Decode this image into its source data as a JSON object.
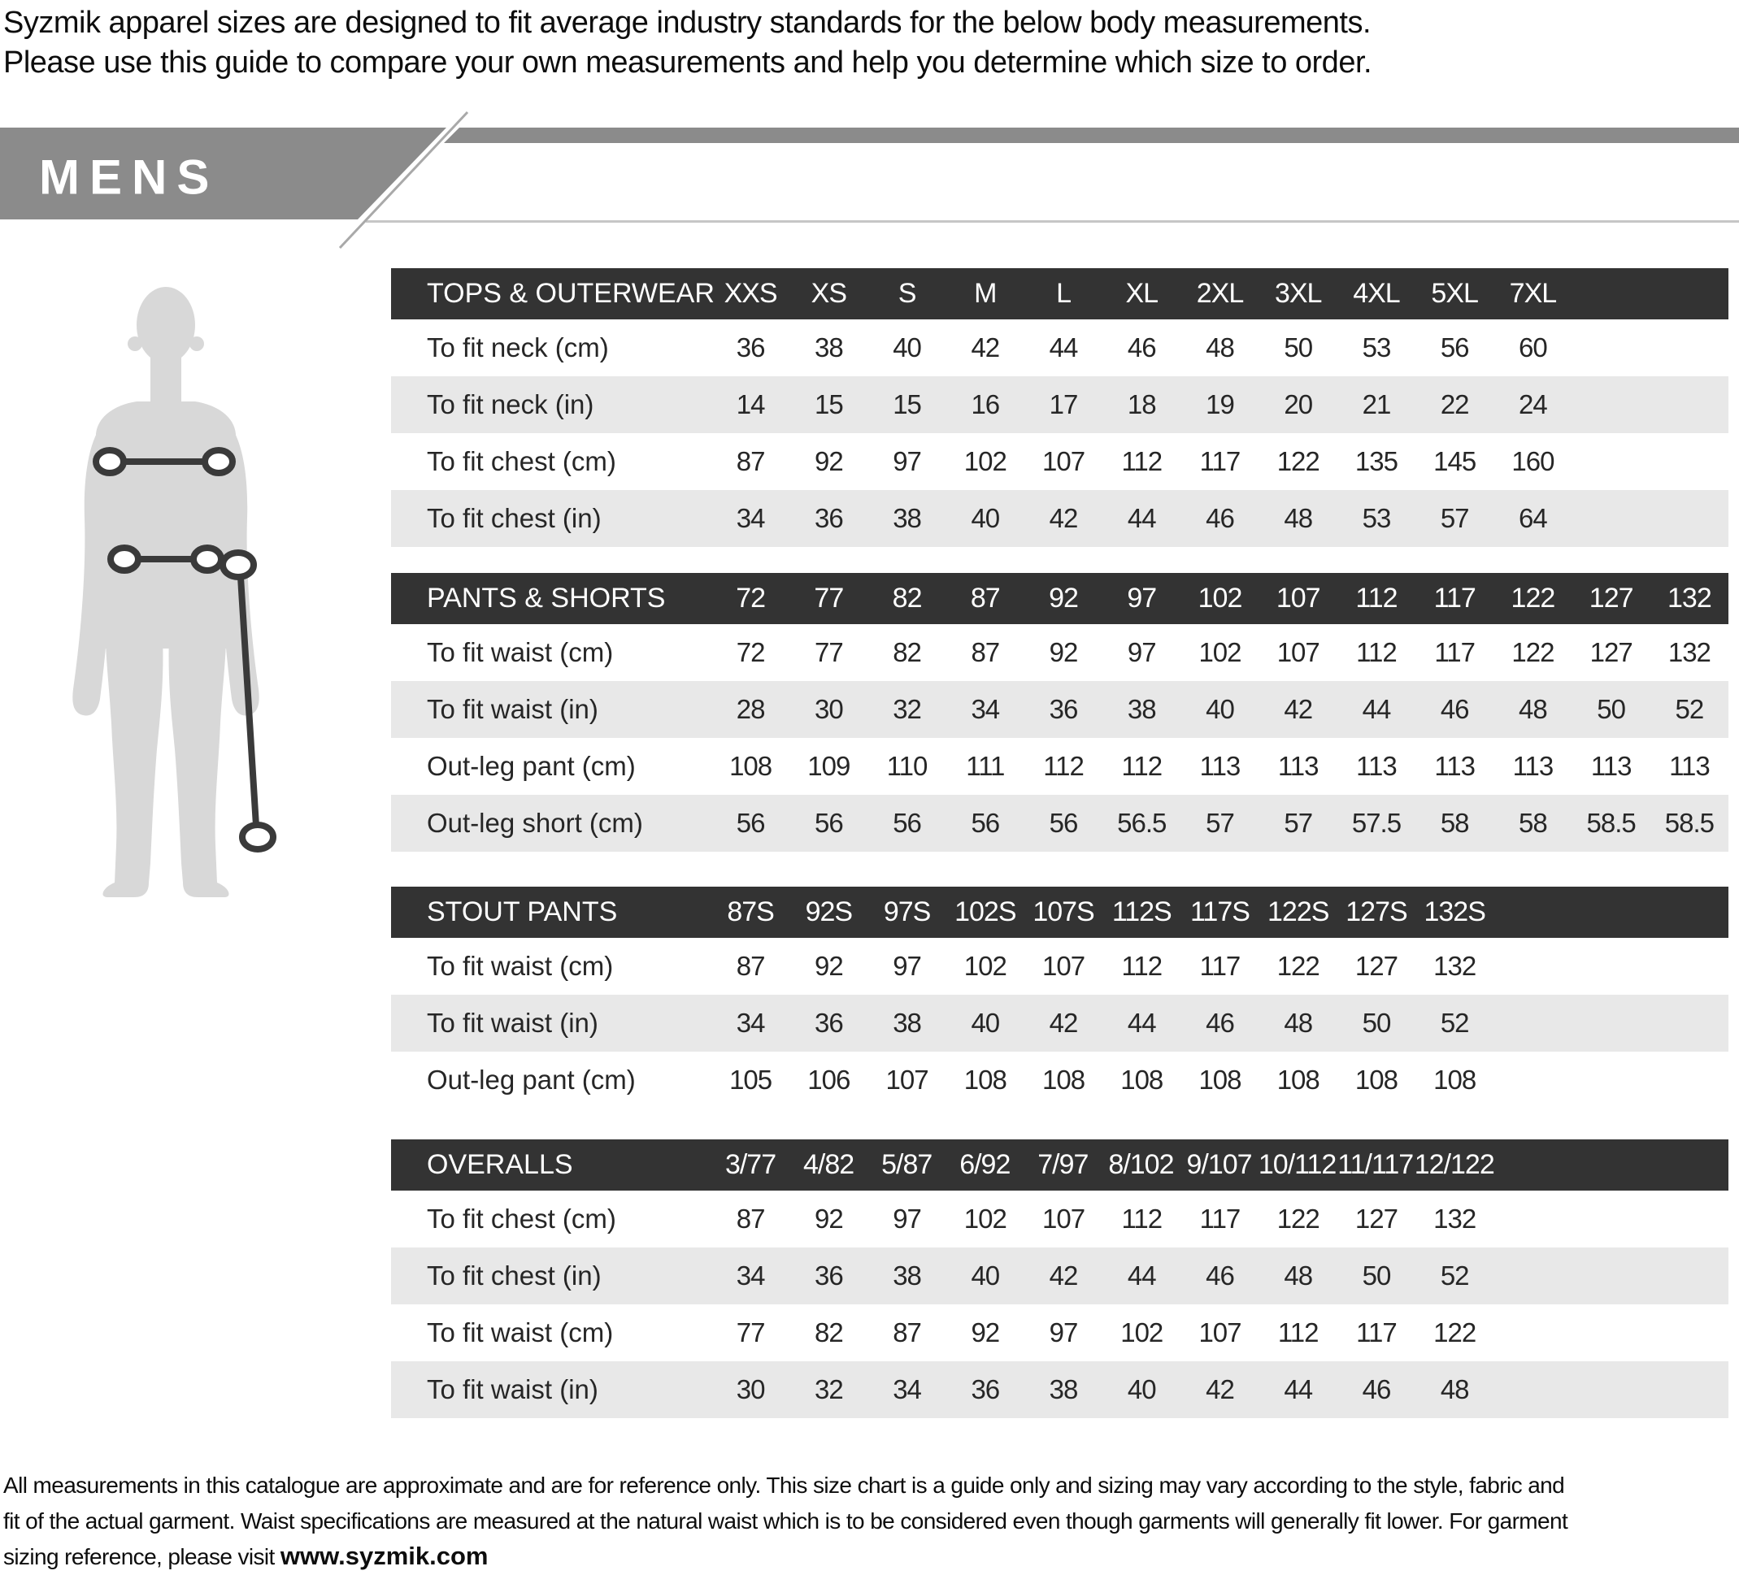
{
  "intro": {
    "line1": "Syzmik apparel sizes are designed to fit average industry standards for the below body measurements.",
    "line2": "Please use this guide to compare your own measurements and help you determine which size to order."
  },
  "banner": {
    "title": "MENS"
  },
  "figure": {
    "description": "male-body-silhouette-with-chest-waist-and-outleg-measurement-markers"
  },
  "tables": [
    {
      "title": "TOPS & OUTERWEAR",
      "sizes": [
        "XXS",
        "XS",
        "S",
        "M",
        "L",
        "XL",
        "2XL",
        "3XL",
        "4XL",
        "5XL",
        "7XL"
      ],
      "rows": [
        {
          "label": "To fit neck (cm)",
          "values": [
            "36",
            "38",
            "40",
            "42",
            "44",
            "46",
            "48",
            "50",
            "53",
            "56",
            "60"
          ]
        },
        {
          "label": "To fit neck (in)",
          "values": [
            "14",
            "15",
            "15",
            "16",
            "17",
            "18",
            "19",
            "20",
            "21",
            "22",
            "24"
          ]
        },
        {
          "label": "To fit chest (cm)",
          "values": [
            "87",
            "92",
            "97",
            "102",
            "107",
            "112",
            "117",
            "122",
            "135",
            "145",
            "160"
          ]
        },
        {
          "label": "To fit chest (in)",
          "values": [
            "34",
            "36",
            "38",
            "40",
            "42",
            "44",
            "46",
            "48",
            "53",
            "57",
            "64"
          ]
        }
      ]
    },
    {
      "title": "PANTS & SHORTS",
      "sizes": [
        "72",
        "77",
        "82",
        "87",
        "92",
        "97",
        "102",
        "107",
        "112",
        "117",
        "122",
        "127",
        "132"
      ],
      "rows": [
        {
          "label": "To fit waist (cm)",
          "values": [
            "72",
            "77",
            "82",
            "87",
            "92",
            "97",
            "102",
            "107",
            "112",
            "117",
            "122",
            "127",
            "132"
          ]
        },
        {
          "label": "To fit waist (in)",
          "values": [
            "28",
            "30",
            "32",
            "34",
            "36",
            "38",
            "40",
            "42",
            "44",
            "46",
            "48",
            "50",
            "52"
          ]
        },
        {
          "label": "Out-leg pant (cm)",
          "values": [
            "108",
            "109",
            "110",
            "111",
            "112",
            "112",
            "113",
            "113",
            "113",
            "113",
            "113",
            "113",
            "113"
          ]
        },
        {
          "label": "Out-leg short (cm)",
          "values": [
            "56",
            "56",
            "56",
            "56",
            "56",
            "56.5",
            "57",
            "57",
            "57.5",
            "58",
            "58",
            "58.5",
            "58.5"
          ]
        }
      ]
    },
    {
      "title": "STOUT PANTS",
      "sizes": [
        "87S",
        "92S",
        "97S",
        "102S",
        "107S",
        "112S",
        "117S",
        "122S",
        "127S",
        "132S"
      ],
      "rows": [
        {
          "label": "To fit waist (cm)",
          "values": [
            "87",
            "92",
            "97",
            "102",
            "107",
            "112",
            "117",
            "122",
            "127",
            "132"
          ]
        },
        {
          "label": "To fit waist (in)",
          "values": [
            "34",
            "36",
            "38",
            "40",
            "42",
            "44",
            "46",
            "48",
            "50",
            "52"
          ]
        },
        {
          "label": "Out-leg pant (cm)",
          "values": [
            "105",
            "106",
            "107",
            "108",
            "108",
            "108",
            "108",
            "108",
            "108",
            "108"
          ]
        }
      ]
    },
    {
      "title": "OVERALLS",
      "sizes": [
        "3/77",
        "4/82",
        "5/87",
        "6/92",
        "7/97",
        "8/102",
        "9/107",
        "10/112",
        "11/117",
        "12/122"
      ],
      "rows": [
        {
          "label": "To fit chest (cm)",
          "values": [
            "87",
            "92",
            "97",
            "102",
            "107",
            "112",
            "117",
            "122",
            "127",
            "132"
          ]
        },
        {
          "label": "To fit chest (in)",
          "values": [
            "34",
            "36",
            "38",
            "40",
            "42",
            "44",
            "46",
            "48",
            "50",
            "52"
          ]
        },
        {
          "label": "To fit waist (cm)",
          "values": [
            "77",
            "82",
            "87",
            "92",
            "97",
            "102",
            "107",
            "112",
            "117",
            "122"
          ]
        },
        {
          "label": "To fit waist (in)",
          "values": [
            "30",
            "32",
            "34",
            "36",
            "38",
            "40",
            "42",
            "44",
            "46",
            "48"
          ]
        }
      ]
    }
  ],
  "footer": {
    "line1": "All measurements in this catalogue are approximate and are for reference only. This size chart is a guide only and sizing may vary according to the style, fabric and",
    "line2": "fit of the actual garment. Waist specifications are measured at the natural waist which is to be considered even though garments will generally fit lower. For garment",
    "line3_prefix": "sizing reference, please visit ",
    "website": "www.syzmik.com"
  },
  "colors": {
    "header_bar": "#333333",
    "row_stripe": "#e8e8e8",
    "banner_gray": "#8b8b8b",
    "underline_gray": "#c6c6c6",
    "diagonal_gray": "#a9a9a9",
    "silhouette_gray": "#d8d8d8",
    "marker_dark": "#3a3a3a"
  }
}
